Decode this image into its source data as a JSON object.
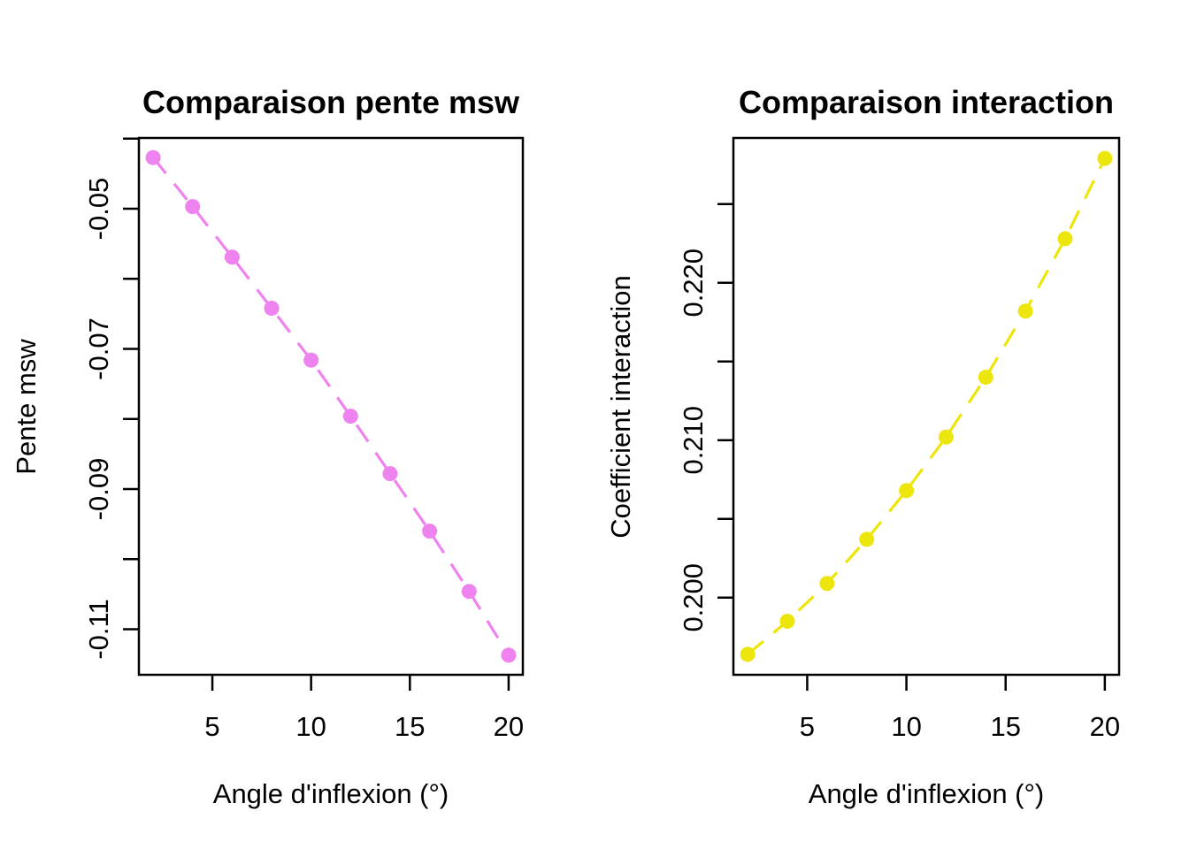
{
  "figure": {
    "background": "#FFFFFF",
    "text_color": "#000000"
  },
  "chart_data": [
    {
      "type": "line",
      "panel": "left",
      "title": "Comparaison pente msw",
      "xlabel": "Angle d'inflexion (°)",
      "ylabel": "Pente msw",
      "grid": false,
      "legend": null,
      "xlim": [
        1.28,
        20.72
      ],
      "ylim": [
        -0.1165,
        -0.0399
      ],
      "xticks": [
        {
          "v": 5,
          "label": "5"
        },
        {
          "v": 10,
          "label": "10"
        },
        {
          "v": 15,
          "label": "15"
        },
        {
          "v": 20,
          "label": "20"
        }
      ],
      "yticks": [
        {
          "v": -0.11,
          "label": "-0.11"
        },
        {
          "v": -0.1,
          "label": ""
        },
        {
          "v": -0.09,
          "label": "-0.09"
        },
        {
          "v": -0.08,
          "label": ""
        },
        {
          "v": -0.07,
          "label": "-0.07"
        },
        {
          "v": -0.06,
          "label": ""
        },
        {
          "v": -0.05,
          "label": "-0.05"
        },
        {
          "v": -0.04,
          "label": ""
        }
      ],
      "series": [
        {
          "name": "pente msw",
          "color": "#EE82EE",
          "line_style": "dashed",
          "marker": "circle",
          "x": [
            2,
            4,
            6,
            8,
            10,
            12,
            14,
            16,
            18,
            20
          ],
          "y": [
            -0.0427,
            -0.0497,
            -0.0569,
            -0.0642,
            -0.0716,
            -0.0796,
            -0.0878,
            -0.096,
            -0.1046,
            -0.1137
          ]
        }
      ]
    },
    {
      "type": "line",
      "panel": "right",
      "title": "Comparaison interaction",
      "xlabel": "Angle d'inflexion (°)",
      "ylabel": "Coefficient interaction",
      "grid": false,
      "legend": null,
      "xlim": [
        1.28,
        20.72
      ],
      "ylim": [
        0.1951,
        0.2292
      ],
      "xticks": [
        {
          "v": 5,
          "label": "5"
        },
        {
          "v": 10,
          "label": "10"
        },
        {
          "v": 15,
          "label": "15"
        },
        {
          "v": 20,
          "label": "20"
        }
      ],
      "yticks": [
        {
          "v": 0.2,
          "label": "0.200"
        },
        {
          "v": 0.205,
          "label": ""
        },
        {
          "v": 0.21,
          "label": "0.210"
        },
        {
          "v": 0.215,
          "label": ""
        },
        {
          "v": 0.22,
          "label": "0.220"
        },
        {
          "v": 0.225,
          "label": ""
        }
      ],
      "series": [
        {
          "name": "coefficient interaction",
          "color": "#EDE60D",
          "line_style": "dashed",
          "marker": "circle",
          "x": [
            2,
            4,
            6,
            8,
            10,
            12,
            14,
            16,
            18,
            20
          ],
          "y": [
            0.1964,
            0.1985,
            0.2009,
            0.2037,
            0.2068,
            0.2102,
            0.214,
            0.2182,
            0.2228,
            0.2279
          ]
        }
      ]
    }
  ]
}
